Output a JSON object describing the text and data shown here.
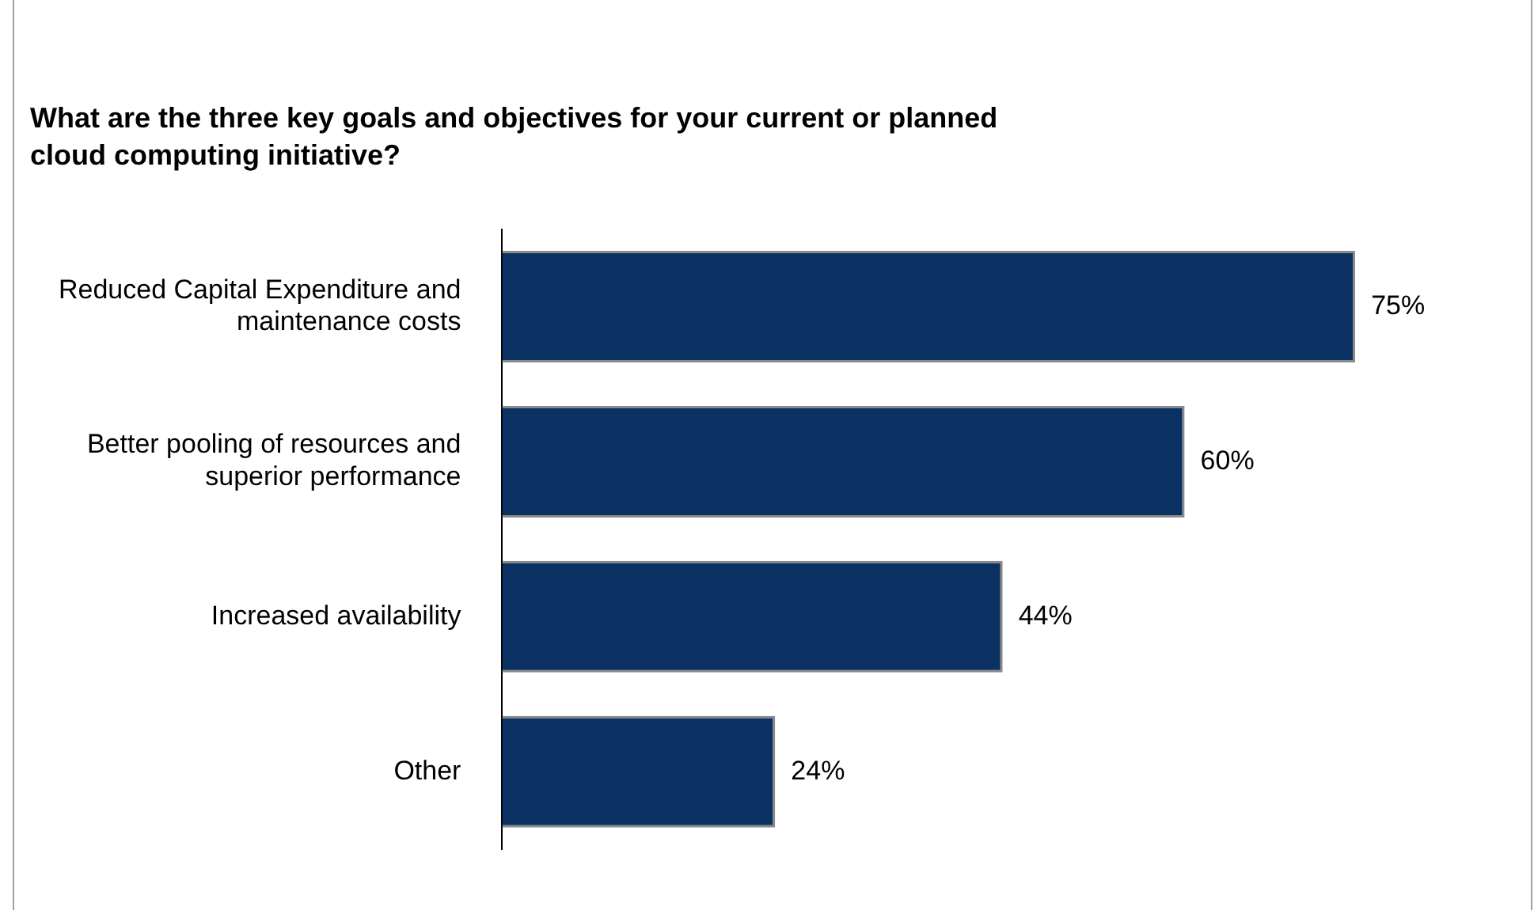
{
  "chart_data": {
    "type": "bar",
    "orientation": "horizontal",
    "title": "What are the three key goals and objectives for your current or planned cloud computing initiative?",
    "categories": [
      "Reduced Capital Expenditure and maintenance costs",
      "Better pooling of resources and superior performance",
      "Increased availability",
      "Other"
    ],
    "values": [
      75,
      60,
      44,
      24
    ],
    "value_labels": [
      "75%",
      "60%",
      "44%",
      "24%"
    ],
    "color": "#0b3163",
    "grid": false,
    "legend": false
  }
}
